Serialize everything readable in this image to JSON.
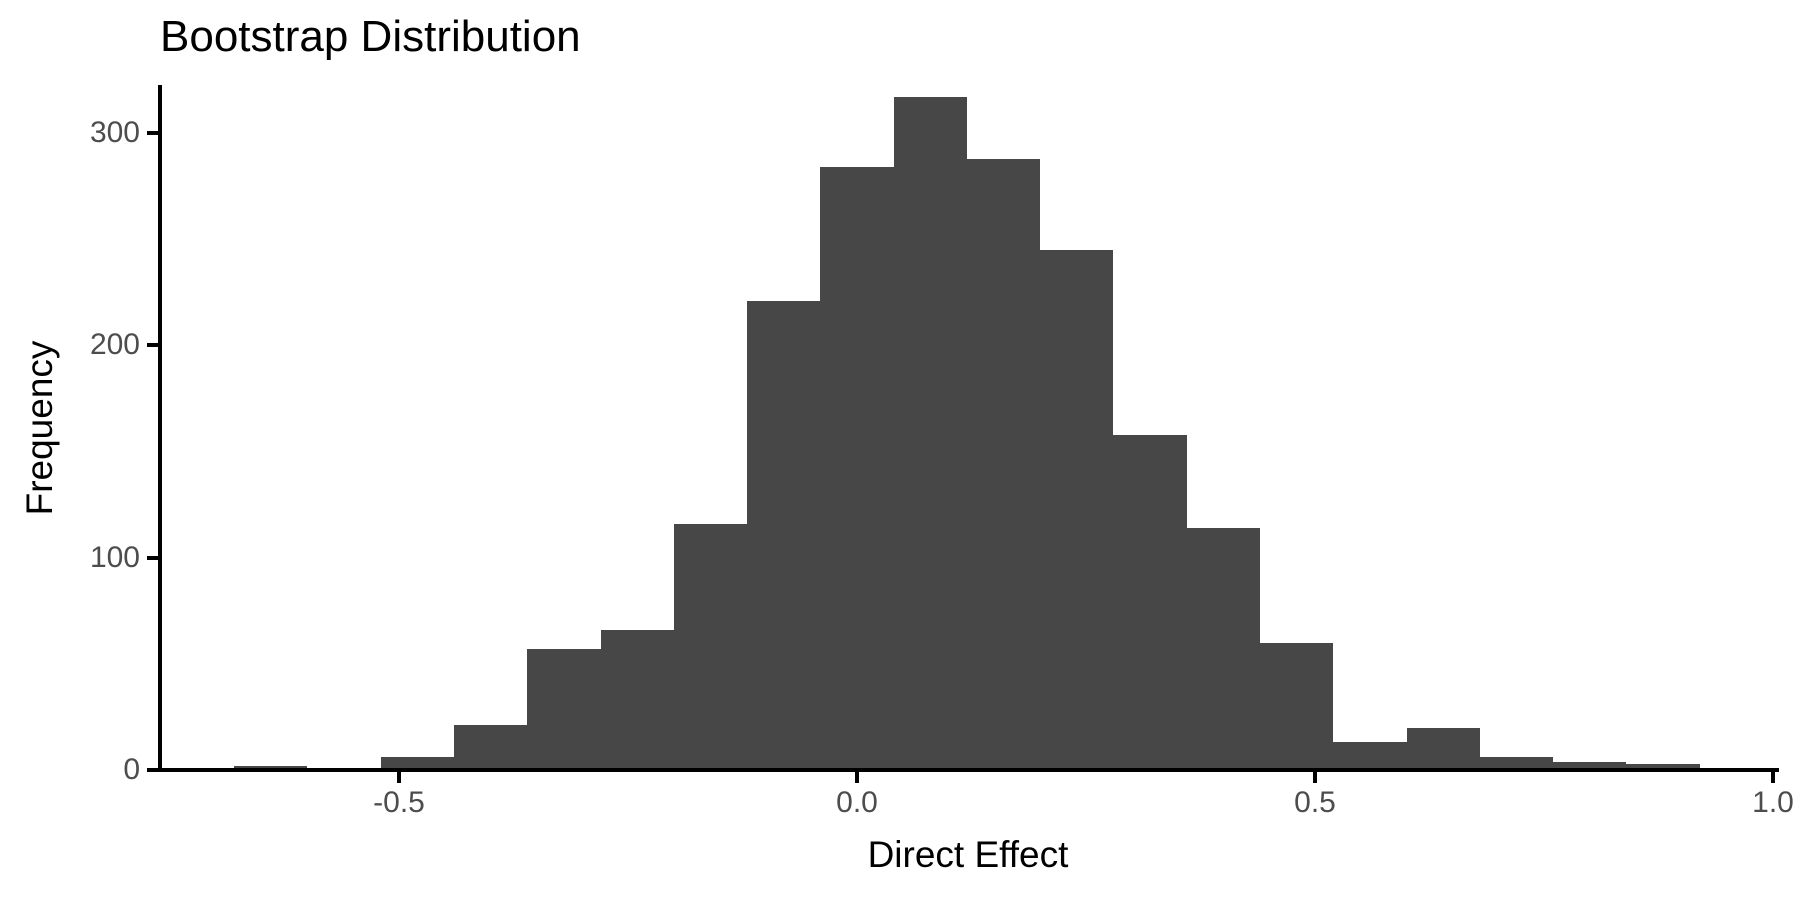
{
  "colors": {
    "bar": "#474747",
    "axis": "#000000",
    "tick_label": "#4d4d4d",
    "text": "#000000",
    "background": "#ffffff"
  },
  "chart_data": {
    "type": "bar",
    "subtype": "histogram",
    "title": "Bootstrap Distribution",
    "xlabel": "Direct Effect",
    "ylabel": "Frequency",
    "x_ticks": [
      -0.5,
      0.0,
      0.5,
      1.0
    ],
    "x_tick_labels": [
      "-0.5",
      "0.0",
      "0.5",
      "1.0"
    ],
    "y_ticks": [
      0,
      100,
      200,
      300
    ],
    "y_tick_labels": [
      "0",
      "100",
      "200",
      "300"
    ],
    "xlim": [
      -0.76,
      1.0
    ],
    "ylim": [
      0,
      323
    ],
    "grid": "off",
    "legend": "none",
    "bin_width": 0.08,
    "bin_edges": [
      -0.68,
      -0.6,
      -0.52,
      -0.44,
      -0.36,
      -0.28,
      -0.2,
      -0.12,
      -0.04,
      0.04,
      0.12,
      0.2,
      0.28,
      0.36,
      0.44,
      0.52,
      0.6,
      0.68,
      0.76,
      0.84,
      0.92,
      1.0
    ],
    "frequencies": [
      2,
      0,
      6,
      21,
      57,
      66,
      116,
      221,
      284,
      317,
      288,
      245,
      158,
      114,
      60,
      13,
      20,
      6,
      4,
      3,
      1
    ]
  }
}
